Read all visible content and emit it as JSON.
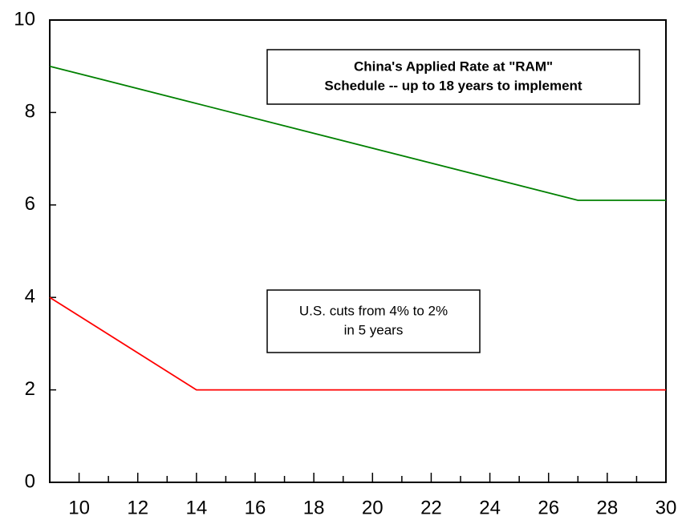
{
  "chart_data": {
    "type": "line",
    "series": [
      {
        "color": "#008000",
        "x": [
          9,
          27,
          30
        ],
        "values": [
          9,
          6.1,
          6.1
        ]
      },
      {
        "color": "#ff0000",
        "x": [
          9,
          14,
          30
        ],
        "values": [
          4,
          2,
          2
        ]
      }
    ],
    "xlim": [
      9,
      30
    ],
    "xticks": [
      10,
      12,
      14,
      16,
      18,
      20,
      22,
      24,
      26,
      28,
      30
    ],
    "xminorticks": [
      9,
      11,
      13,
      15,
      17,
      19,
      21,
      23,
      25,
      27,
      29
    ],
    "ylim": [
      0,
      10
    ],
    "yticks": [
      0,
      2,
      4,
      6,
      8,
      10
    ],
    "annotations": [
      {
        "lines": [
          "China's Applied Rate at \"RAM\"",
          "Schedule -- up to 18 years to implement"
        ]
      },
      {
        "lines": [
          "U.S. cuts from 4% to 2%",
          "in 5 years"
        ]
      }
    ]
  }
}
